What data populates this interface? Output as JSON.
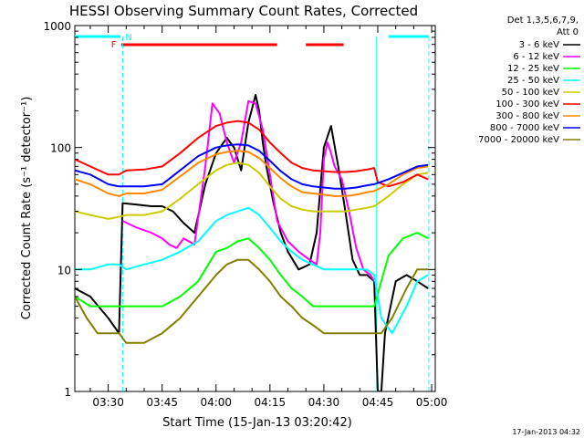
{
  "chart_data": {
    "type": "line",
    "title": "HESSI Observing Summary Count Rates, Corrected",
    "xlabel": "Start Time (15-Jan-13 03:20:42)",
    "ylabel": "Corrected Count Rate (s⁻¹ detector⁻¹)",
    "yscale": "log",
    "ylim": [
      1,
      1000
    ],
    "y_ticks": [
      "1",
      "10",
      "100",
      "1000"
    ],
    "x_start_minutes": 200.7,
    "x_end_minutes": 301.0,
    "x_ticks": [
      {
        "label": "03:30",
        "minutes": 210
      },
      {
        "label": "03:45",
        "minutes": 225
      },
      {
        "label": "04:00",
        "minutes": 240
      },
      {
        "label": "04:15",
        "minutes": 255
      },
      {
        "label": "04:30",
        "minutes": 270
      },
      {
        "label": "04:45",
        "minutes": 285
      },
      {
        "label": "05:00",
        "minutes": 300
      }
    ],
    "legend_header": [
      "Det 1,3,5,6,7,9,",
      "Att 0"
    ],
    "legend_position": "right",
    "timestamp": "17-Jan-2013 04:32",
    "flags": {
      "night_label": "N",
      "flare_label": "F",
      "night_color": "#00ffff",
      "flare_color": "#ff0000",
      "night_intervals": [
        [
          200.7,
          213.4
        ],
        [
          288.0,
          299.2
        ]
      ],
      "flare_intervals": [
        [
          213.6,
          257.0
        ],
        [
          265.0,
          275.5
        ]
      ],
      "night_boundaries": [
        214.0,
        284.7,
        299.2
      ]
    },
    "series": [
      {
        "name": "3 - 6 keV",
        "color": "#000000",
        "x": [
          200.7,
          205,
          210,
          213,
          214,
          218,
          222,
          225,
          228,
          231,
          234,
          237,
          240,
          243,
          245,
          247,
          249,
          251,
          252,
          253,
          254,
          256,
          258,
          260,
          263,
          266,
          268,
          270,
          272,
          274,
          276,
          278,
          280,
          282,
          284,
          285,
          286,
          287,
          290,
          293,
          296,
          299
        ],
        "y": [
          7,
          6,
          4,
          3,
          35,
          34,
          33,
          33,
          30,
          24,
          20,
          50,
          90,
          120,
          100,
          65,
          160,
          270,
          200,
          110,
          70,
          35,
          20,
          14,
          10,
          11,
          20,
          100,
          150,
          70,
          30,
          12,
          9,
          9,
          8,
          1,
          1,
          3,
          8,
          9,
          8,
          7
        ]
      },
      {
        "name": "6 - 12 keV",
        "color": "#ff00ff",
        "x": [
          214,
          218,
          222,
          225,
          227,
          229,
          231,
          234,
          237,
          239,
          241,
          243,
          245,
          247,
          249,
          251,
          253,
          255,
          257,
          260,
          263,
          266,
          268,
          269,
          270,
          271,
          272,
          273,
          275,
          277,
          279,
          281,
          283,
          284
        ],
        "y": [
          25,
          22,
          20,
          18,
          16,
          15,
          18,
          16,
          70,
          230,
          190,
          110,
          75,
          110,
          240,
          230,
          140,
          60,
          25,
          17,
          14,
          12,
          11,
          20,
          80,
          110,
          90,
          70,
          55,
          30,
          15,
          10,
          9,
          8
        ]
      },
      {
        "name": "12 - 25 keV",
        "color": "#00ff00",
        "x": [
          200.7,
          205,
          210,
          213,
          215,
          220,
          225,
          230,
          235,
          240,
          243,
          246,
          249,
          252,
          255,
          258,
          261,
          264,
          267,
          270,
          273,
          276,
          279,
          282,
          284,
          288,
          292,
          296,
          299
        ],
        "y": [
          6,
          5,
          5,
          5,
          5,
          5,
          5,
          6,
          8,
          14,
          15,
          17,
          18,
          15,
          12,
          9,
          7,
          6,
          5,
          5,
          5,
          5,
          5,
          5,
          5,
          13,
          18,
          20,
          18
        ]
      },
      {
        "name": "25 - 50 keV",
        "color": "#00ffff",
        "x": [
          200.7,
          205,
          210,
          213,
          215,
          220,
          225,
          230,
          235,
          240,
          243,
          246,
          249,
          252,
          255,
          258,
          261,
          264,
          267,
          270,
          273,
          276,
          279,
          282,
          284,
          286,
          289,
          293,
          296,
          299
        ],
        "y": [
          10,
          10,
          11,
          11,
          10,
          11,
          12,
          14,
          17,
          25,
          28,
          30,
          32,
          28,
          22,
          17,
          14,
          12,
          11,
          10,
          10,
          10,
          10,
          10,
          9,
          4,
          3,
          5,
          8,
          9
        ]
      },
      {
        "name": "50 - 100 keV",
        "color": "#cccc00",
        "x": [
          200.7,
          205,
          210,
          213,
          215,
          220,
          225,
          230,
          235,
          240,
          243,
          246,
          249,
          252,
          255,
          258,
          261,
          264,
          267,
          270,
          273,
          276,
          279,
          282,
          284,
          288,
          292,
          296,
          299
        ],
        "y": [
          30,
          28,
          26,
          27,
          28,
          28,
          30,
          38,
          50,
          65,
          72,
          75,
          72,
          62,
          48,
          38,
          33,
          31,
          30,
          30,
          30,
          30,
          31,
          32,
          33,
          40,
          50,
          60,
          62
        ]
      },
      {
        "name": "100 - 300 keV",
        "color": "#ff0000",
        "x": [
          200.7,
          205,
          210,
          213,
          215,
          220,
          225,
          230,
          235,
          240,
          243,
          246,
          249,
          252,
          255,
          258,
          261,
          264,
          267,
          270,
          273,
          276,
          279,
          282,
          284,
          285,
          288,
          292,
          296,
          299
        ],
        "y": [
          80,
          70,
          60,
          60,
          65,
          66,
          70,
          90,
          120,
          150,
          160,
          165,
          160,
          140,
          110,
          90,
          75,
          68,
          65,
          64,
          63,
          63,
          64,
          66,
          68,
          52,
          48,
          52,
          60,
          55
        ]
      },
      {
        "name": "300 - 800 keV",
        "color": "#ff8800",
        "x": [
          200.7,
          205,
          210,
          213,
          215,
          220,
          225,
          230,
          235,
          240,
          243,
          246,
          249,
          252,
          255,
          258,
          261,
          264,
          267,
          270,
          273,
          276,
          279,
          282,
          284,
          288,
          292,
          296,
          299
        ],
        "y": [
          55,
          50,
          42,
          40,
          42,
          42,
          45,
          58,
          75,
          88,
          92,
          94,
          92,
          82,
          68,
          56,
          48,
          43,
          42,
          41,
          40,
          40,
          41,
          43,
          44,
          50,
          60,
          68,
          70
        ]
      },
      {
        "name": "800 - 7000 keV",
        "color": "#0000ff",
        "x": [
          200.7,
          205,
          210,
          213,
          215,
          220,
          225,
          230,
          235,
          240,
          243,
          246,
          249,
          252,
          255,
          258,
          261,
          264,
          267,
          270,
          273,
          276,
          279,
          282,
          284,
          288,
          292,
          296,
          299
        ],
        "y": [
          65,
          60,
          50,
          48,
          48,
          48,
          50,
          65,
          85,
          100,
          104,
          106,
          104,
          94,
          78,
          64,
          55,
          50,
          48,
          47,
          46,
          46,
          47,
          49,
          50,
          55,
          62,
          70,
          72
        ]
      },
      {
        "name": "7000 - 20000 keV",
        "color": "#808000",
        "x": [
          200.7,
          204,
          207,
          210,
          213,
          215,
          220,
          225,
          230,
          235,
          240,
          243,
          246,
          249,
          252,
          255,
          258,
          261,
          264,
          267,
          270,
          273,
          276,
          279,
          282,
          284,
          286,
          289,
          293,
          296,
          299
        ],
        "y": [
          6,
          4,
          3,
          3,
          3,
          2.5,
          2.5,
          3,
          4,
          6,
          9,
          11,
          12,
          12,
          10,
          8,
          6,
          5,
          4,
          3.5,
          3,
          3,
          3,
          3,
          3,
          3,
          3,
          4,
          7,
          10,
          10
        ]
      }
    ]
  }
}
